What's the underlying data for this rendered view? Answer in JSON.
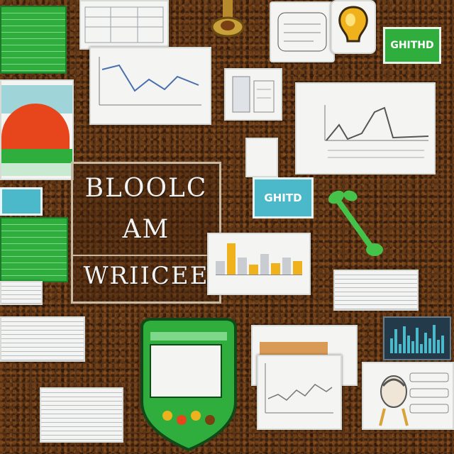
{
  "board": {
    "line1": "BLOOLC",
    "line2": "AM",
    "line3": "WRIICEE"
  },
  "tags": {
    "top_right": "GHITHD",
    "center_blue": "GHITD"
  },
  "colors": {
    "background": "#5a3416",
    "paper": "#f4f5f3",
    "green": "#2fae3e",
    "cyan": "#4bb9c9",
    "orange": "#e7451b",
    "yellow": "#f0b21c"
  },
  "icons": {
    "lightbulb": "lightbulb-icon",
    "plant": "seedling-icon",
    "head": "person-head-icon",
    "device": "tablet-device-icon"
  },
  "bar_chart": {
    "values": [
      0.4,
      0.9,
      0.5,
      0.3,
      0.6,
      0.35,
      0.5,
      0.4
    ]
  },
  "spike_chart": {
    "values": [
      0.5,
      0.8,
      0.3,
      0.9,
      0.6,
      0.4,
      0.85,
      0.3,
      0.7,
      0.5,
      0.95,
      0.45,
      0.6
    ]
  }
}
